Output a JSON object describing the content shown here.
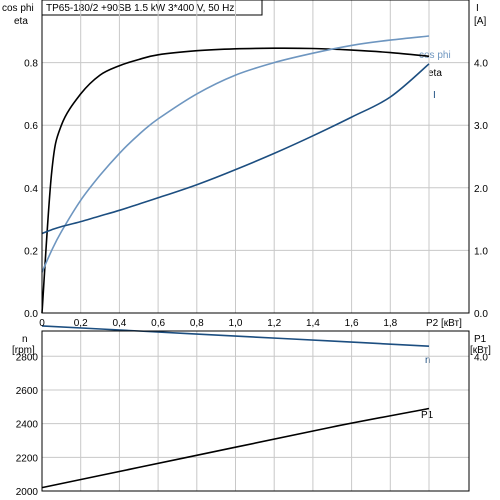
{
  "title": "TP65-180/2 +90SB   1.5 kW   3*400 V, 50 Hz",
  "colors": {
    "eta": "#000000",
    "cos_phi": "#6e96c0",
    "I": "#1c4e80",
    "n": "#1c4e80",
    "P1": "#000000",
    "grid": "#c8c8c8"
  },
  "top_panel": {
    "left_label_1": "cos phi",
    "left_label_2": "eta",
    "right_label_1": "I",
    "right_label_2": "[A]",
    "xlabel": "P2 [кВт]",
    "left_ticks": [
      "0.0",
      "0.2",
      "0.4",
      "0.6",
      "0.8"
    ],
    "right_ticks": [
      "0.0",
      "1.0",
      "2.0",
      "3.0",
      "4.0"
    ],
    "x_ticks": [
      "0",
      "0,2",
      "0,4",
      "0,6",
      "0,8",
      "1,0",
      "1,2",
      "1,4",
      "1,6",
      "1,8"
    ],
    "curve_labels": {
      "cos_phi": "cos phi",
      "eta": "eta",
      "I": "I"
    }
  },
  "bottom_panel": {
    "left_label_1": "n",
    "left_label_2": "[rpm]",
    "right_label_1": "P1",
    "right_label_2": "[кВт]",
    "left_ticks": [
      "2000",
      "2200",
      "2400",
      "2600",
      "2800"
    ],
    "right_ticks": [
      "4.0"
    ],
    "curve_labels": {
      "n": "n",
      "P1": "P1"
    }
  },
  "chart_data": [
    {
      "type": "line",
      "title": "TP65-180/2 +90SB   1.5 kW   3*400 V, 50 Hz",
      "xlabel": "P2 [кВт]",
      "ylabel": "cos phi / eta",
      "y2label": "I [A]",
      "xlim": [
        0,
        2.2
      ],
      "ylim": [
        0,
        1.0
      ],
      "y2lim": [
        0,
        5.0
      ],
      "grid": true,
      "x": [
        0,
        0.05,
        0.1,
        0.2,
        0.3,
        0.4,
        0.5,
        0.6,
        0.8,
        1.0,
        1.2,
        1.4,
        1.6,
        1.8,
        2.0
      ],
      "series": [
        {
          "name": "eta",
          "axis": "left",
          "values": [
            0.0,
            0.45,
            0.6,
            0.7,
            0.76,
            0.79,
            0.81,
            0.825,
            0.838,
            0.844,
            0.846,
            0.845,
            0.84,
            0.832,
            0.82
          ]
        },
        {
          "name": "cos phi",
          "axis": "left",
          "values": [
            0.13,
            0.2,
            0.26,
            0.36,
            0.44,
            0.51,
            0.57,
            0.62,
            0.7,
            0.76,
            0.8,
            0.83,
            0.855,
            0.872,
            0.885
          ]
        },
        {
          "name": "I",
          "axis": "right",
          "values": [
            1.27,
            1.33,
            1.38,
            1.46,
            1.55,
            1.64,
            1.74,
            1.84,
            2.05,
            2.29,
            2.55,
            2.83,
            3.13,
            3.45,
            3.98
          ]
        }
      ]
    },
    {
      "type": "line",
      "xlabel": "P2 [кВт]",
      "ylabel": "n [rpm]",
      "y2label": "P1 [кВт]",
      "xlim": [
        0,
        2.2
      ],
      "ylim": [
        2000,
        2950
      ],
      "y2lim": [
        0,
        4.75
      ],
      "grid": true,
      "x": [
        0,
        0.5,
        1.0,
        1.5,
        2.0
      ],
      "series": [
        {
          "name": "n",
          "axis": "left",
          "values": [
            2980,
            2950,
            2920,
            2890,
            2860
          ]
        },
        {
          "name": "P1",
          "axis": "right",
          "values": [
            0.1,
            0.7,
            1.3,
            1.9,
            2.45
          ]
        }
      ]
    }
  ]
}
